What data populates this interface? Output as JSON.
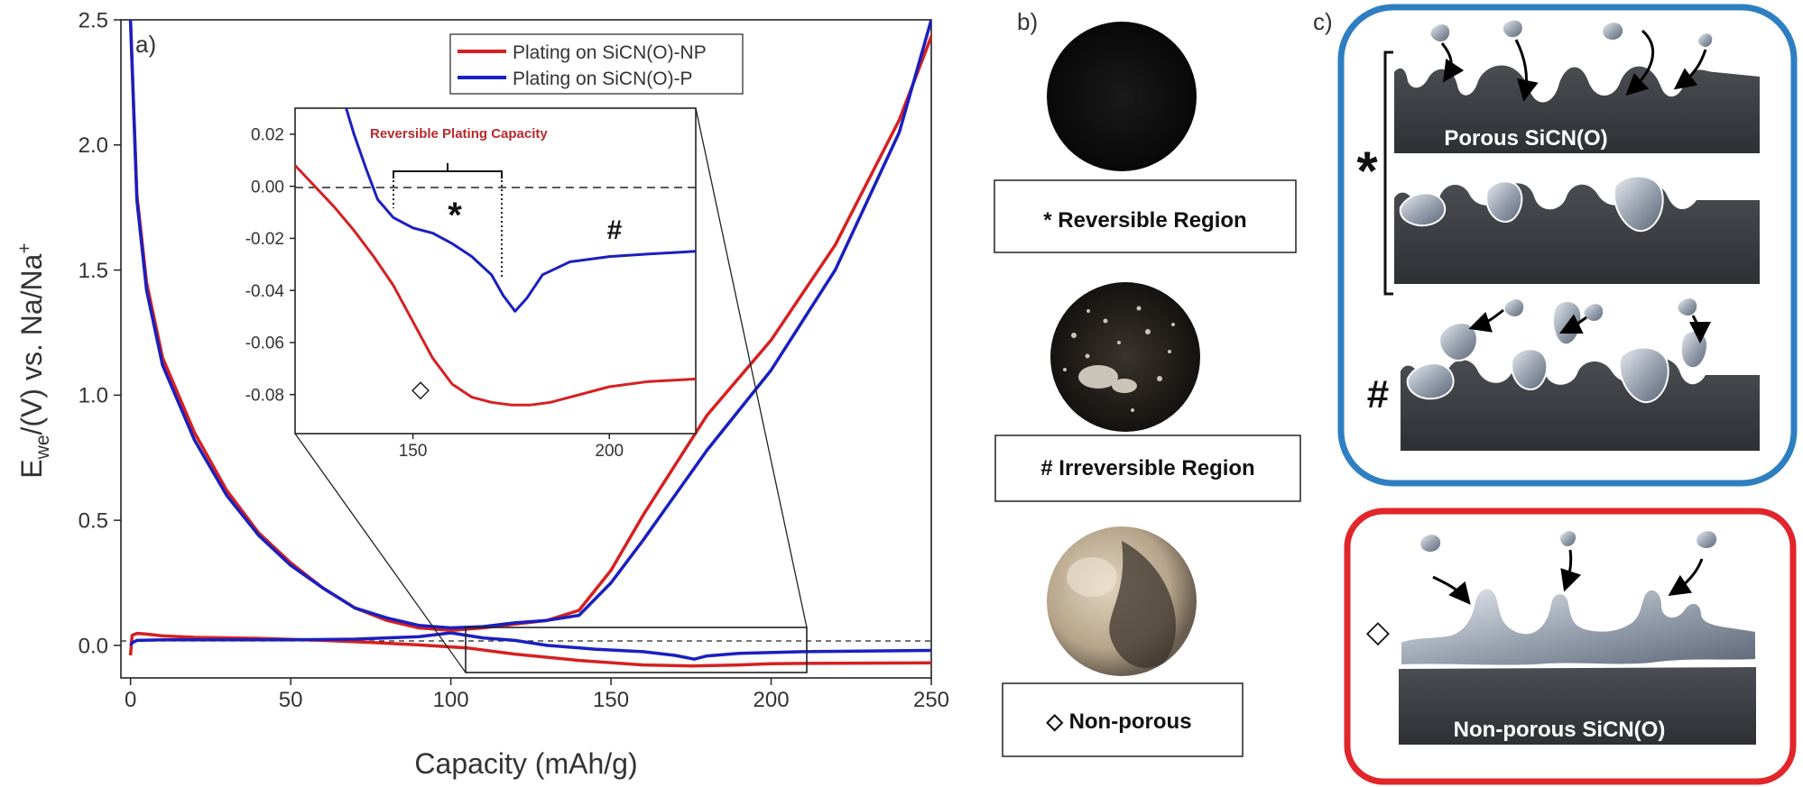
{
  "panel_a": {
    "label": "a)"
  },
  "panel_b": {
    "label": "b)",
    "labels": [
      "* Reversible Region",
      "# Irreversible Region",
      "◇ Non-porous"
    ]
  },
  "panel_c": {
    "label": "c)",
    "porous_title": "Porous SiCN(O)",
    "nonporous_title": "Non-porous SiCN(O)",
    "marker_star": "*",
    "marker_hash": "#",
    "marker_diamond": "◇",
    "colors": {
      "porous_frame": "#2e7fc1",
      "nonporous_frame": "#e0262b"
    }
  },
  "chart_data": [
    {
      "type": "line",
      "xlabel": "Capacity (mAh/g)",
      "ylabel": "E_we/(V) vs. Na/Na+",
      "xlim": [
        -3,
        250
      ],
      "ylim": [
        -0.13,
        2.5
      ],
      "xticks": [
        "0",
        "50",
        "100",
        "150",
        "200",
        "250"
      ],
      "yticks": [
        "0.0",
        "0.5",
        "1.0",
        "1.5",
        "2.0",
        "2.5"
      ],
      "legend_position": "top-right",
      "series": [
        {
          "name": "Plating on SiCN(O)-NP",
          "color": "#d62021",
          "points": [
            [
              0,
              -0.04
            ],
            [
              0.5,
              0.04
            ],
            [
              2,
              0.048
            ],
            [
              5,
              0.045
            ],
            [
              10,
              0.038
            ],
            [
              20,
              0.032
            ],
            [
              40,
              0.028
            ],
            [
              60,
              0.02
            ],
            [
              75,
              0.012
            ],
            [
              90,
              0.002
            ],
            [
              105,
              -0.01
            ],
            [
              120,
              -0.035
            ],
            [
              140,
              -0.06
            ],
            [
              160,
              -0.078
            ],
            [
              175,
              -0.082
            ],
            [
              190,
              -0.078
            ],
            [
              200,
              -0.073
            ],
            [
              210,
              -0.072
            ],
            [
              250,
              -0.07
            ]
          ]
        },
        {
          "name": "Plating on SiCN(O)-P",
          "color": "#1a1fbf",
          "points": [
            [
              0,
              0.0
            ],
            [
              0.5,
              0.01
            ],
            [
              2,
              0.02
            ],
            [
              10,
              0.022
            ],
            [
              30,
              0.022
            ],
            [
              50,
              0.022
            ],
            [
              70,
              0.025
            ],
            [
              90,
              0.035
            ],
            [
              100,
              0.05
            ],
            [
              110,
              0.03
            ],
            [
              120,
              0.02
            ],
            [
              130,
              0.0
            ],
            [
              145,
              -0.015
            ],
            [
              160,
              -0.025
            ],
            [
              170,
              -0.04
            ],
            [
              176,
              -0.055
            ],
            [
              180,
              -0.042
            ],
            [
              190,
              -0.032
            ],
            [
              210,
              -0.025
            ],
            [
              250,
              -0.02
            ]
          ]
        }
      ],
      "series_charge": [
        {
          "name": "Plating on SiCN(O)-NP",
          "points": [
            [
              0,
              2.5
            ],
            [
              2,
              1.8
            ],
            [
              5,
              1.45
            ],
            [
              10,
              1.15
            ],
            [
              20,
              0.85
            ],
            [
              30,
              0.62
            ],
            [
              40,
              0.45
            ],
            [
              50,
              0.33
            ],
            [
              60,
              0.23
            ],
            [
              70,
              0.15
            ],
            [
              80,
              0.1
            ],
            [
              90,
              0.07
            ],
            [
              100,
              0.06
            ],
            [
              110,
              0.07
            ],
            [
              120,
              0.085
            ],
            [
              130,
              0.1
            ],
            [
              140,
              0.14
            ],
            [
              150,
              0.3
            ],
            [
              160,
              0.52
            ],
            [
              170,
              0.72
            ],
            [
              180,
              0.92
            ],
            [
              200,
              1.22
            ],
            [
              220,
              1.6
            ],
            [
              240,
              2.1
            ],
            [
              252,
              2.5
            ]
          ]
        },
        {
          "name": "Plating on SiCN(O)-P",
          "points": [
            [
              0,
              2.5
            ],
            [
              2,
              1.78
            ],
            [
              5,
              1.42
            ],
            [
              10,
              1.12
            ],
            [
              20,
              0.82
            ],
            [
              30,
              0.6
            ],
            [
              40,
              0.44
            ],
            [
              50,
              0.32
            ],
            [
              60,
              0.23
            ],
            [
              70,
              0.15
            ],
            [
              80,
              0.11
            ],
            [
              90,
              0.08
            ],
            [
              100,
              0.07
            ],
            [
              110,
              0.075
            ],
            [
              120,
              0.09
            ],
            [
              130,
              0.1
            ],
            [
              140,
              0.12
            ],
            [
              150,
              0.25
            ],
            [
              160,
              0.42
            ],
            [
              170,
              0.6
            ],
            [
              180,
              0.78
            ],
            [
              200,
              1.1
            ],
            [
              220,
              1.5
            ],
            [
              240,
              2.05
            ],
            [
              250,
              2.5
            ]
          ]
        }
      ]
    },
    {
      "type": "line",
      "title": "Reversible Plating Capacity",
      "xlim": [
        120,
        222
      ],
      "ylim": [
        -0.095,
        0.03
      ],
      "xticks": [
        "150",
        "200"
      ],
      "yticks": [
        "0.02",
        "0.00",
        "-0.02",
        "-0.04",
        "-0.06",
        "-0.08"
      ],
      "annotations": [
        "*",
        "#",
        "◇"
      ],
      "series": [
        {
          "name": "Plating on SiCN(O)-NP",
          "points": [
            [
              120,
              0.008
            ],
            [
              125,
              0.0
            ],
            [
              130,
              -0.008
            ],
            [
              135,
              -0.017
            ],
            [
              140,
              -0.027
            ],
            [
              145,
              -0.038
            ],
            [
              150,
              -0.052
            ],
            [
              155,
              -0.066
            ],
            [
              160,
              -0.076
            ],
            [
              165,
              -0.081
            ],
            [
              170,
              -0.083
            ],
            [
              175,
              -0.084
            ],
            [
              180,
              -0.084
            ],
            [
              185,
              -0.083
            ],
            [
              190,
              -0.081
            ],
            [
              200,
              -0.077
            ],
            [
              210,
              -0.075
            ],
            [
              222,
              -0.074
            ]
          ]
        },
        {
          "name": "Plating on SiCN(O)-P",
          "points": [
            [
              133,
              0.03
            ],
            [
              135,
              0.02
            ],
            [
              138,
              0.007
            ],
            [
              141,
              -0.005
            ],
            [
              145,
              -0.012
            ],
            [
              150,
              -0.016
            ],
            [
              155,
              -0.018
            ],
            [
              160,
              -0.022
            ],
            [
              165,
              -0.027
            ],
            [
              170,
              -0.034
            ],
            [
              173,
              -0.042
            ],
            [
              176,
              -0.048
            ],
            [
              179,
              -0.043
            ],
            [
              183,
              -0.034
            ],
            [
              190,
              -0.029
            ],
            [
              200,
              -0.027
            ],
            [
              210,
              -0.026
            ],
            [
              222,
              -0.025
            ]
          ]
        }
      ]
    }
  ]
}
